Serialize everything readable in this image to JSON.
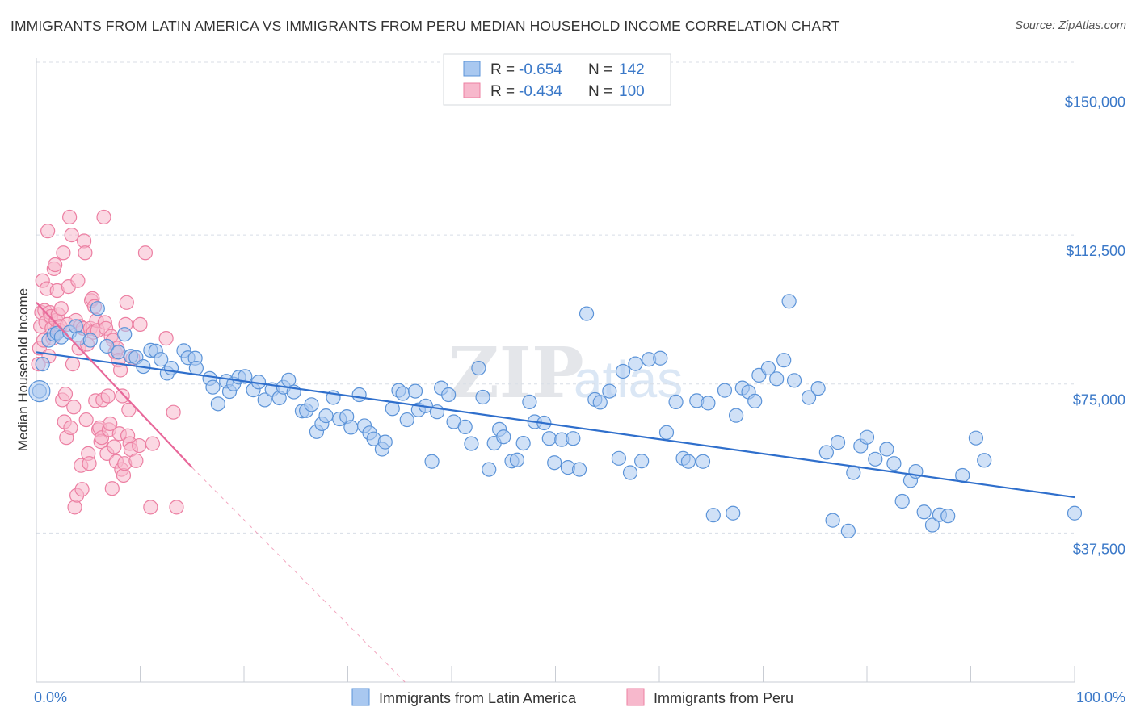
{
  "title": "IMMIGRANTS FROM LATIN AMERICA VS IMMIGRANTS FROM PERU MEDIAN HOUSEHOLD INCOME CORRELATION CHART",
  "source": "Source: ZipAtlas.com",
  "watermark": {
    "zip": "ZIP",
    "atlas": "atlas"
  },
  "colors": {
    "blue_fill": "#a9c8f0",
    "blue_stroke": "#5b93d8",
    "blue_line": "#2f6fcc",
    "pink_fill": "#f7b8cc",
    "pink_stroke": "#ec7fa2",
    "pink_line": "#e8689a",
    "grid": "#d8dde6",
    "tick_text": "#3a78c8"
  },
  "legend": {
    "r_label": "R =",
    "n_label": "N =",
    "entries": [
      {
        "r": "-0.654",
        "n": "142"
      },
      {
        "r": "-0.434",
        "n": "100"
      }
    ]
  },
  "chart_data": {
    "type": "scatter",
    "ylabel": "Median Household Income",
    "xlim": [
      0,
      100
    ],
    "ylim": [
      0,
      157000
    ],
    "x_tick_labels": [
      {
        "value": 0,
        "label": "0.0%"
      },
      {
        "value": 100,
        "label": "100.0%"
      }
    ],
    "y_ticks": [
      {
        "value": 37500,
        "label": "$37,500"
      },
      {
        "value": 75000,
        "label": "$75,000"
      },
      {
        "value": 112500,
        "label": "$112,500"
      },
      {
        "value": 150000,
        "label": "$150,000"
      }
    ],
    "grid": true,
    "legend_position": "top-center",
    "series": [
      {
        "name": "Immigrants from Latin America",
        "color": "blue",
        "trendline": {
          "x": [
            0,
            100
          ],
          "y": [
            83000,
            46500
          ]
        },
        "points": [
          [
            0.3,
            73200
          ],
          [
            0.6,
            80000
          ],
          [
            1.2,
            86000
          ],
          [
            1.7,
            87500
          ],
          [
            2.0,
            87800
          ],
          [
            2.4,
            86800
          ],
          [
            3.2,
            88000
          ],
          [
            3.8,
            89500
          ],
          [
            4.1,
            86500
          ],
          [
            5.2,
            86000
          ],
          [
            5.9,
            94000
          ],
          [
            6.8,
            84500
          ],
          [
            7.9,
            83000
          ],
          [
            8.5,
            87500
          ],
          [
            9.1,
            82000
          ],
          [
            9.6,
            81700
          ],
          [
            10.3,
            79400
          ],
          [
            11.0,
            83500
          ],
          [
            11.5,
            83300
          ],
          [
            12.0,
            81200
          ],
          [
            12.6,
            77700
          ],
          [
            13.0,
            79000
          ],
          [
            14.2,
            83400
          ],
          [
            14.6,
            81600
          ],
          [
            15.3,
            81500
          ],
          [
            15.4,
            79000
          ],
          [
            16.7,
            76400
          ],
          [
            17.0,
            74200
          ],
          [
            17.5,
            70000
          ],
          [
            18.3,
            75700
          ],
          [
            18.6,
            73100
          ],
          [
            19.0,
            75000
          ],
          [
            19.5,
            76700
          ],
          [
            20.1,
            76900
          ],
          [
            20.9,
            73500
          ],
          [
            21.4,
            75500
          ],
          [
            22.0,
            71000
          ],
          [
            22.7,
            73600
          ],
          [
            23.4,
            71500
          ],
          [
            23.8,
            74200
          ],
          [
            24.3,
            76000
          ],
          [
            24.8,
            73000
          ],
          [
            25.6,
            68200
          ],
          [
            26.0,
            68300
          ],
          [
            26.5,
            69800
          ],
          [
            27.0,
            63000
          ],
          [
            27.5,
            65000
          ],
          [
            27.9,
            67000
          ],
          [
            28.6,
            71600
          ],
          [
            29.2,
            66200
          ],
          [
            29.9,
            66800
          ],
          [
            30.3,
            64100
          ],
          [
            31.1,
            72300
          ],
          [
            31.6,
            64500
          ],
          [
            32.1,
            62700
          ],
          [
            32.5,
            61200
          ],
          [
            33.3,
            58600
          ],
          [
            33.6,
            60400
          ],
          [
            34.3,
            68800
          ],
          [
            34.9,
            73400
          ],
          [
            35.3,
            72600
          ],
          [
            35.7,
            66000
          ],
          [
            36.5,
            73200
          ],
          [
            36.8,
            68500
          ],
          [
            37.5,
            69500
          ],
          [
            38.1,
            55500
          ],
          [
            38.6,
            68000
          ],
          [
            39.0,
            74000
          ],
          [
            39.7,
            72300
          ],
          [
            40.2,
            65500
          ],
          [
            41.3,
            64200
          ],
          [
            41.9,
            60000
          ],
          [
            42.6,
            79000
          ],
          [
            43.0,
            71700
          ],
          [
            43.6,
            53500
          ],
          [
            44.1,
            60100
          ],
          [
            44.6,
            63600
          ],
          [
            45.0,
            61700
          ],
          [
            45.8,
            55600
          ],
          [
            46.3,
            55900
          ],
          [
            46.9,
            60100
          ],
          [
            47.5,
            70500
          ],
          [
            48.0,
            65500
          ],
          [
            48.9,
            65200
          ],
          [
            49.4,
            61300
          ],
          [
            49.9,
            55200
          ],
          [
            50.6,
            61000
          ],
          [
            51.2,
            54000
          ],
          [
            51.7,
            61300
          ],
          [
            52.3,
            53500
          ],
          [
            53.0,
            92700
          ],
          [
            53.8,
            71100
          ],
          [
            54.3,
            70400
          ],
          [
            55.2,
            73200
          ],
          [
            56.1,
            56300
          ],
          [
            56.5,
            78200
          ],
          [
            57.2,
            52700
          ],
          [
            57.7,
            80100
          ],
          [
            58.3,
            55600
          ],
          [
            59.0,
            81200
          ],
          [
            60.1,
            81500
          ],
          [
            60.7,
            62800
          ],
          [
            61.6,
            70500
          ],
          [
            62.3,
            56300
          ],
          [
            62.8,
            55500
          ],
          [
            63.6,
            70800
          ],
          [
            64.2,
            55500
          ],
          [
            64.7,
            70200
          ],
          [
            65.2,
            42000
          ],
          [
            66.3,
            73400
          ],
          [
            67.1,
            42500
          ],
          [
            67.4,
            67100
          ],
          [
            68.0,
            74000
          ],
          [
            68.6,
            73000
          ],
          [
            69.2,
            70700
          ],
          [
            69.6,
            77200
          ],
          [
            70.5,
            79000
          ],
          [
            71.3,
            76300
          ],
          [
            72.0,
            81000
          ],
          [
            72.5,
            95800
          ],
          [
            73.0,
            75900
          ],
          [
            74.4,
            71600
          ],
          [
            75.3,
            73900
          ],
          [
            76.1,
            57800
          ],
          [
            76.7,
            40700
          ],
          [
            77.2,
            60300
          ],
          [
            78.2,
            38000
          ],
          [
            78.7,
            52700
          ],
          [
            79.4,
            59400
          ],
          [
            80.0,
            61600
          ],
          [
            80.8,
            56100
          ],
          [
            81.9,
            58600
          ],
          [
            82.6,
            55000
          ],
          [
            83.4,
            45500
          ],
          [
            84.2,
            50700
          ],
          [
            84.7,
            53000
          ],
          [
            85.5,
            42800
          ],
          [
            86.3,
            39500
          ],
          [
            87.0,
            42100
          ],
          [
            87.8,
            41800
          ],
          [
            89.2,
            52000
          ],
          [
            90.5,
            61400
          ],
          [
            91.3,
            55800
          ],
          [
            100.0,
            42500
          ]
        ]
      },
      {
        "name": "Immigrants from Peru",
        "color": "pink",
        "trendline": {
          "x": [
            0,
            15
          ],
          "y": [
            95500,
            54000
          ]
        },
        "trendline_dashed": {
          "x": [
            15,
            35.5
          ],
          "y": [
            54000,
            0
          ]
        },
        "points": [
          [
            0.2,
            80000
          ],
          [
            0.3,
            84000
          ],
          [
            0.4,
            89500
          ],
          [
            0.5,
            93000
          ],
          [
            0.6,
            101000
          ],
          [
            0.7,
            86000
          ],
          [
            0.8,
            93500
          ],
          [
            0.9,
            90500
          ],
          [
            1.0,
            99000
          ],
          [
            1.1,
            113500
          ],
          [
            1.2,
            82000
          ],
          [
            1.3,
            93000
          ],
          [
            1.4,
            92000
          ],
          [
            1.5,
            89000
          ],
          [
            1.6,
            86500
          ],
          [
            1.7,
            104000
          ],
          [
            1.8,
            105000
          ],
          [
            1.9,
            91000
          ],
          [
            2.0,
            98500
          ],
          [
            2.1,
            92500
          ],
          [
            2.2,
            88500
          ],
          [
            2.3,
            89500
          ],
          [
            2.4,
            94000
          ],
          [
            2.5,
            71000
          ],
          [
            2.6,
            108000
          ],
          [
            2.7,
            65500
          ],
          [
            2.8,
            72500
          ],
          [
            2.9,
            61500
          ],
          [
            3.0,
            90000
          ],
          [
            3.1,
            99500
          ],
          [
            3.2,
            117000
          ],
          [
            3.3,
            64000
          ],
          [
            3.4,
            112500
          ],
          [
            3.5,
            80000
          ],
          [
            3.6,
            69200
          ],
          [
            3.7,
            44000
          ],
          [
            3.8,
            91000
          ],
          [
            3.9,
            47000
          ],
          [
            4.0,
            101000
          ],
          [
            4.1,
            84000
          ],
          [
            4.2,
            89500
          ],
          [
            4.3,
            54500
          ],
          [
            4.4,
            48500
          ],
          [
            4.5,
            89000
          ],
          [
            4.6,
            111000
          ],
          [
            4.7,
            108000
          ],
          [
            4.8,
            66000
          ],
          [
            4.9,
            85000
          ],
          [
            5.0,
            57500
          ],
          [
            5.1,
            55000
          ],
          [
            5.2,
            89000
          ],
          [
            5.3,
            96000
          ],
          [
            5.4,
            96500
          ],
          [
            5.5,
            88000
          ],
          [
            5.6,
            94500
          ],
          [
            5.7,
            70800
          ],
          [
            5.8,
            91000
          ],
          [
            5.9,
            88500
          ],
          [
            6.0,
            63500
          ],
          [
            6.1,
            64000
          ],
          [
            6.2,
            60500
          ],
          [
            6.3,
            61500
          ],
          [
            6.4,
            71000
          ],
          [
            6.5,
            117000
          ],
          [
            6.6,
            90500
          ],
          [
            6.7,
            89000
          ],
          [
            6.8,
            57500
          ],
          [
            6.9,
            72000
          ],
          [
            7.0,
            63500
          ],
          [
            7.1,
            65000
          ],
          [
            7.2,
            87000
          ],
          [
            7.3,
            48700
          ],
          [
            7.4,
            86000
          ],
          [
            7.5,
            59200
          ],
          [
            7.6,
            83000
          ],
          [
            7.7,
            55500
          ],
          [
            7.8,
            84000
          ],
          [
            7.9,
            81000
          ],
          [
            8.0,
            62500
          ],
          [
            8.1,
            78500
          ],
          [
            8.2,
            53500
          ],
          [
            8.3,
            72000
          ],
          [
            8.4,
            52000
          ],
          [
            8.5,
            55000
          ],
          [
            8.6,
            90000
          ],
          [
            8.7,
            95500
          ],
          [
            8.8,
            62000
          ],
          [
            8.9,
            68500
          ],
          [
            9.0,
            60000
          ],
          [
            9.1,
            58500
          ],
          [
            9.6,
            55700
          ],
          [
            9.9,
            59500
          ],
          [
            10.5,
            108000
          ],
          [
            11.0,
            44000
          ],
          [
            11.2,
            60000
          ],
          [
            12.5,
            86500
          ],
          [
            13.2,
            67900
          ],
          [
            13.5,
            44000
          ],
          [
            10.0,
            90000
          ],
          [
            9.3,
            81500
          ]
        ]
      }
    ]
  },
  "bottom_legend": [
    {
      "label": "Immigrants from Latin America",
      "color": "blue"
    },
    {
      "label": "Immigrants from Peru",
      "color": "pink"
    }
  ]
}
